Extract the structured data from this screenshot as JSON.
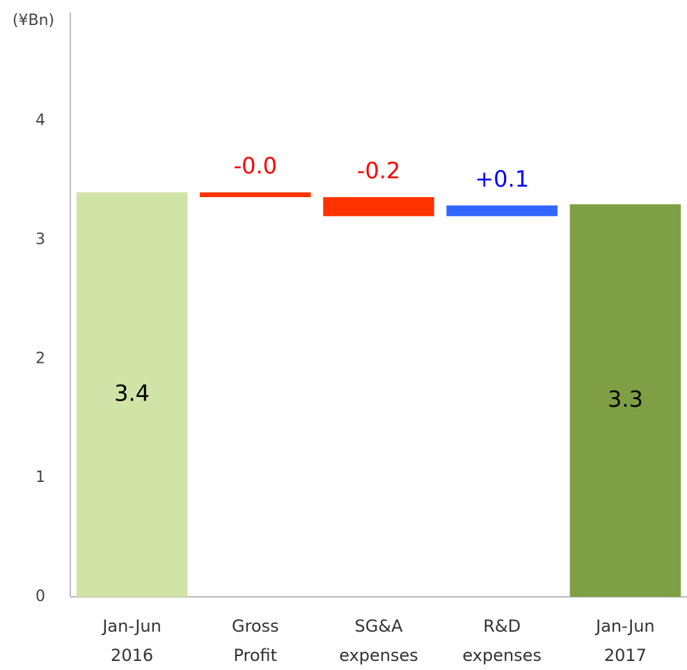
{
  "chart_data": {
    "type": "waterfall",
    "y_label": "(¥Bn)",
    "categories": [
      [
        "Jan-Jun",
        "2016"
      ],
      [
        "Gross",
        "Profit"
      ],
      [
        "SG&A",
        "expenses"
      ],
      [
        "R&D",
        "expenses"
      ],
      [
        "Jan-Jun",
        "2017"
      ]
    ],
    "values": [
      3.4,
      -0.04,
      -0.16,
      0.09,
      3.3
    ],
    "value_labels": [
      "3.4",
      "-0.0",
      "-0.2",
      "+0.1",
      "3.3"
    ],
    "totals": [
      true,
      false,
      false,
      false,
      true
    ],
    "colors": [
      "#d1e3a7",
      "#ff3300",
      "#ff3300",
      "#3366ff",
      "#7f9f45"
    ],
    "label_colors": [
      "#000000",
      "#ff0000",
      "#ff0000",
      "#0000ff",
      "#000000"
    ],
    "ylim": [
      0,
      4.9
    ],
    "yticks": [
      0,
      1,
      2,
      3,
      4
    ],
    "grid": false
  }
}
